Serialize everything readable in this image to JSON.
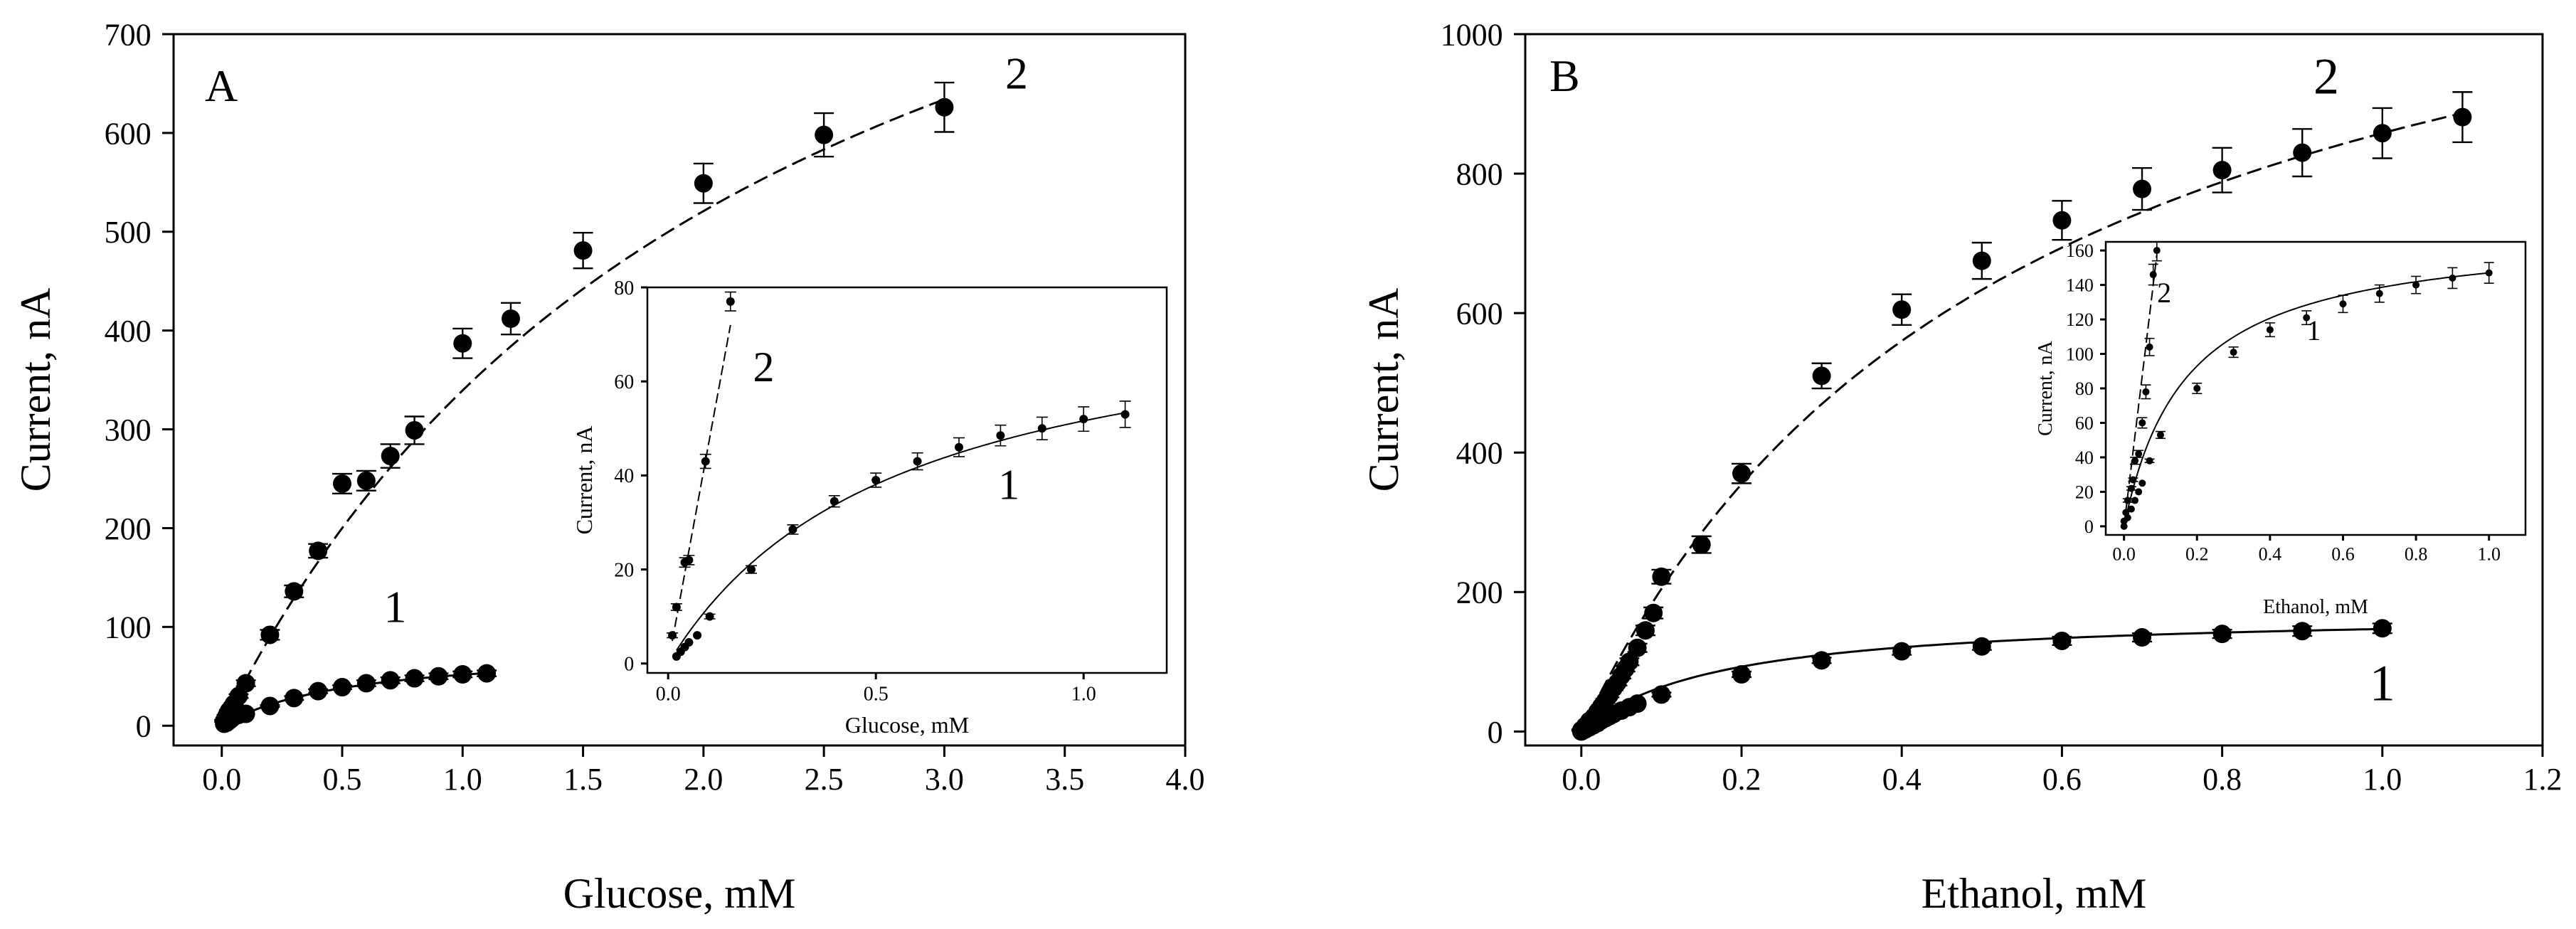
{
  "chart_data": [
    {
      "type": "scatter",
      "panel_label": "A",
      "xlabel": "Glucose, mM",
      "ylabel": "Current, nA",
      "xlim": [
        -0.2,
        4.0
      ],
      "ylim": [
        -20,
        700
      ],
      "xticks": [
        0.0,
        0.5,
        1.0,
        1.5,
        2.0,
        2.5,
        3.0,
        3.5,
        4.0
      ],
      "xtick_labels": [
        "0.0",
        "0.5",
        "1.0",
        "1.5",
        "2.0",
        "2.5",
        "3.0",
        "3.5",
        "4.0"
      ],
      "yticks": [
        0,
        100,
        200,
        300,
        400,
        500,
        600,
        700
      ],
      "ytick_labels": [
        "0",
        "100",
        "200",
        "300",
        "400",
        "500",
        "600",
        "700"
      ],
      "series": [
        {
          "name": "1",
          "label_text": "1",
          "label_at": [
            0.72,
            105
          ],
          "line": "solid",
          "fit": {
            "model": "michaelis-menten",
            "vmax": 80,
            "km": 0.55
          },
          "x": [
            0.01,
            0.02,
            0.03,
            0.04,
            0.05,
            0.07,
            0.1,
            0.2,
            0.3,
            0.4,
            0.5,
            0.6,
            0.7,
            0.8,
            0.9,
            1.0,
            1.1
          ],
          "y": [
            2,
            3,
            5,
            7,
            9,
            11,
            12,
            20,
            28,
            35,
            39,
            43,
            46,
            48,
            50,
            52,
            53
          ],
          "err": [
            0,
            0,
            0,
            0,
            0,
            0,
            0,
            1,
            2,
            2,
            2,
            3,
            3,
            3,
            3,
            3,
            3
          ]
        },
        {
          "name": "2",
          "label_text": "2",
          "label_at": [
            3.3,
            645
          ],
          "line": "dashed",
          "fit": {
            "model": "michaelis-menten",
            "vmax": 1120,
            "km": 2.3
          },
          "x": [
            0.01,
            0.02,
            0.03,
            0.04,
            0.05,
            0.07,
            0.1,
            0.2,
            0.3,
            0.4,
            0.5,
            0.6,
            0.7,
            0.8,
            1.0,
            1.2,
            1.5,
            2.0,
            2.5,
            3.0
          ],
          "y": [
            5,
            10,
            15,
            18,
            22,
            30,
            43,
            92,
            136,
            177,
            245,
            248,
            273,
            299,
            387,
            412,
            481,
            549,
            598,
            626
          ],
          "err": [
            1,
            1,
            1,
            1,
            1,
            2,
            3,
            5,
            6,
            7,
            10,
            10,
            12,
            14,
            15,
            16,
            18,
            20,
            22,
            25
          ]
        }
      ],
      "inset": {
        "xlabel": "Glucose, mM",
        "ylabel": "Current, nA",
        "xlim": [
          -0.05,
          1.2
        ],
        "ylim": [
          -2,
          80
        ],
        "xticks": [
          0.0,
          0.5,
          1.0
        ],
        "xtick_labels": [
          "0.0",
          "0.5",
          "1.0"
        ],
        "yticks": [
          0,
          20,
          40,
          60,
          80
        ],
        "ytick_labels": [
          "0",
          "20",
          "40",
          "60",
          "80"
        ],
        "series": [
          {
            "name": "1",
            "label_text": "1",
            "label_at": [
              0.82,
              35
            ],
            "line": "solid",
            "fit": {
              "model": "michaelis-menten",
              "vmax": 80,
              "km": 0.55
            },
            "x": [
              0.02,
              0.03,
              0.04,
              0.05,
              0.07,
              0.1,
              0.2,
              0.3,
              0.4,
              0.5,
              0.6,
              0.7,
              0.8,
              0.9,
              1.0,
              1.1
            ],
            "y": [
              1.5,
              2.5,
              3.5,
              4.5,
              6,
              10,
              20,
              28.5,
              34.5,
              39,
              43,
              46,
              48.5,
              50,
              52,
              53
            ],
            "err": [
              0,
              0,
              0,
              0,
              0,
              0.5,
              0.8,
              1,
              1.2,
              1.5,
              1.8,
              2,
              2.2,
              2.4,
              2.6,
              2.8
            ]
          },
          {
            "name": "2",
            "label_text": "2",
            "label_at": [
              0.23,
              60
            ],
            "line": "dashed",
            "fit": {
              "model": "linear",
              "slope": 480
            },
            "x": [
              0.01,
              0.02,
              0.04,
              0.05,
              0.09,
              0.15
            ],
            "y": [
              6,
              12,
              21.5,
              22,
              43,
              77
            ],
            "err": [
              0.5,
              0.7,
              1,
              1,
              1.5,
              2
            ]
          }
        ]
      }
    },
    {
      "type": "scatter",
      "panel_label": "B",
      "xlabel": "Ethanol, mM",
      "ylabel": "Current, nA",
      "xlim": [
        -0.07,
        1.2
      ],
      "ylim": [
        -20,
        1000
      ],
      "xticks": [
        0.0,
        0.2,
        0.4,
        0.6,
        0.8,
        1.0,
        1.2
      ],
      "xtick_labels": [
        "0.0",
        "0.2",
        "0.4",
        "0.6",
        "0.8",
        "1.0",
        "1.2"
      ],
      "yticks": [
        0,
        200,
        400,
        600,
        800,
        1000
      ],
      "ytick_labels": [
        "0",
        "200",
        "400",
        "600",
        "800",
        "1000"
      ],
      "series": [
        {
          "name": "1",
          "label_text": "1",
          "label_at": [
            1.0,
            45
          ],
          "line": "solid",
          "fit": {
            "model": "michaelis-menten",
            "vmax": 172,
            "km": 0.17
          },
          "x": [
            0.0,
            0.005,
            0.01,
            0.015,
            0.02,
            0.025,
            0.03,
            0.035,
            0.04,
            0.05,
            0.06,
            0.07,
            0.1,
            0.2,
            0.3,
            0.4,
            0.5,
            0.6,
            0.7,
            0.8,
            0.9,
            1.0
          ],
          "y": [
            0,
            3,
            6,
            9,
            12,
            16,
            19,
            22,
            25,
            30,
            35,
            40,
            53,
            82,
            102,
            115,
            122,
            130,
            135,
            140,
            144,
            148
          ],
          "err": [
            0,
            0,
            0,
            0,
            0,
            0,
            0,
            0,
            0,
            0,
            0,
            0,
            3,
            4,
            4,
            5,
            5,
            6,
            6,
            6,
            7,
            7
          ]
        },
        {
          "name": "2",
          "label_text": "2",
          "label_at": [
            0.93,
            915
          ],
          "line": "dashed",
          "fit": {
            "model": "michaelis-menten",
            "vmax": 1330,
            "km": 0.55
          },
          "x": [
            0.0,
            0.005,
            0.01,
            0.015,
            0.02,
            0.025,
            0.03,
            0.035,
            0.04,
            0.045,
            0.05,
            0.055,
            0.06,
            0.07,
            0.08,
            0.09,
            0.1,
            0.15,
            0.2,
            0.3,
            0.4,
            0.5,
            0.6,
            0.7,
            0.8,
            0.9,
            1.0,
            1.1
          ],
          "y": [
            2,
            8,
            15,
            20,
            28,
            36,
            44,
            52,
            62,
            70,
            80,
            90,
            100,
            120,
            145,
            170,
            222,
            268,
            370,
            510,
            605,
            675,
            733,
            778,
            805,
            830,
            858,
            881
          ],
          "err": [
            1,
            1,
            1,
            2,
            2,
            2,
            3,
            3,
            3,
            4,
            4,
            4,
            5,
            6,
            7,
            8,
            10,
            12,
            14,
            18,
            22,
            26,
            28,
            30,
            32,
            34,
            36,
            36
          ]
        }
      ],
      "inset": {
        "xlabel": "Ethanol, mM",
        "ylabel": "Current, nA",
        "xlim": [
          -0.05,
          1.1
        ],
        "ylim": [
          -5,
          165
        ],
        "xticks": [
          0.0,
          0.2,
          0.4,
          0.6,
          0.8,
          1.0
        ],
        "xtick_labels": [
          "0.0",
          "0.2",
          "0.4",
          "0.6",
          "0.8",
          "1.0"
        ],
        "yticks": [
          0,
          20,
          40,
          60,
          80,
          100,
          120,
          140,
          160
        ],
        "ytick_labels": [
          "0",
          "20",
          "40",
          "60",
          "80",
          "100",
          "120",
          "140",
          "160"
        ],
        "series": [
          {
            "name": "1",
            "label_text": "1",
            "label_at": [
              0.52,
              108
            ],
            "line": "solid",
            "fit": {
              "model": "michaelis-menten",
              "vmax": 172,
              "km": 0.17
            },
            "x": [
              0.0,
              0.01,
              0.02,
              0.03,
              0.04,
              0.05,
              0.07,
              0.1,
              0.2,
              0.3,
              0.4,
              0.5,
              0.6,
              0.7,
              0.8,
              0.9,
              1.0
            ],
            "y": [
              0,
              5,
              10,
              15,
              20,
              25,
              38,
              53,
              80,
              101,
              114,
              121,
              129,
              135,
              140,
              144,
              147
            ],
            "err": [
              0,
              0,
              0,
              0,
              0,
              0,
              1,
              2,
              3,
              3,
              4,
              4,
              5,
              5,
              5,
              6,
              6
            ]
          },
          {
            "name": "2",
            "label_text": "2",
            "label_at": [
              0.11,
              130
            ],
            "line": "dashed",
            "fit": {
              "model": "linear",
              "slope": 1750
            },
            "x": [
              0.0,
              0.005,
              0.01,
              0.02,
              0.025,
              0.03,
              0.04,
              0.05,
              0.06,
              0.07,
              0.08,
              0.09
            ],
            "y": [
              3,
              8,
              15,
              22,
              27,
              38,
              42,
              60,
              78,
              104,
              146,
              160
            ],
            "err": [
              0,
              0,
              1,
              1,
              1,
              2,
              2,
              3,
              4,
              5,
              6,
              6
            ]
          }
        ]
      }
    }
  ]
}
